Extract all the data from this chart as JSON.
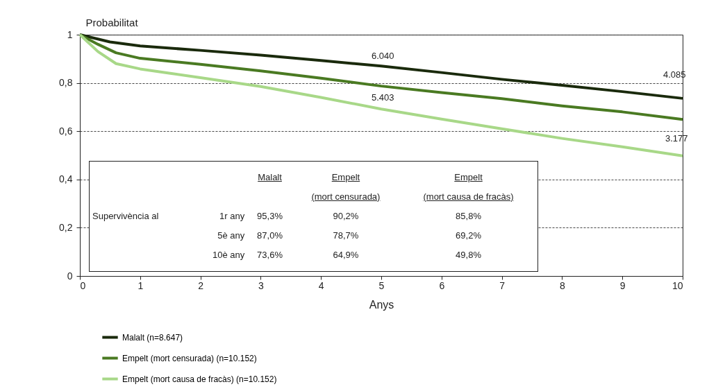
{
  "chart_data": {
    "type": "line",
    "xlabel": "Anys",
    "ylabel": "Probabilitat",
    "xlim": [
      0,
      10
    ],
    "xticks": [
      0,
      1,
      2,
      3,
      4,
      5,
      6,
      7,
      8,
      9,
      10
    ],
    "ylim": [
      0,
      1
    ],
    "yticks": [
      0,
      {
        "value": 0.2,
        "label": "0,2"
      },
      {
        "value": 0.4,
        "label": "0,4"
      },
      {
        "value": 0.6,
        "label": "0,6"
      },
      {
        "value": 0.8,
        "label": "0,8"
      },
      1
    ],
    "grid": "y",
    "legend": "bottom",
    "line_style": "solid",
    "marker": "none",
    "series": [
      {
        "name": "Malalt (n=8.647)",
        "color": "#1a2a0c",
        "x": [
          0,
          0.5,
          1,
          2,
          3,
          4,
          5,
          6,
          7,
          8,
          9,
          10
        ],
        "values": [
          1,
          0.97,
          0.953,
          0.935,
          0.915,
          0.893,
          0.87,
          0.843,
          0.815,
          0.79,
          0.764,
          0.736
        ]
      },
      {
        "name": "Empelt (mort censurada) (n=10.152)",
        "color": "#4a7a22",
        "x": [
          0,
          0.3,
          0.6,
          1,
          2,
          3,
          4,
          5,
          6,
          7,
          8,
          9,
          10
        ],
        "values": [
          1,
          0.96,
          0.925,
          0.902,
          0.877,
          0.85,
          0.82,
          0.787,
          0.76,
          0.735,
          0.705,
          0.68,
          0.649
        ]
      },
      {
        "name": "Empelt (mort causa de fracàs) (n=10.152)",
        "color": "#a8d888",
        "x": [
          0,
          0.3,
          0.6,
          1,
          1.5,
          2,
          3,
          4,
          5,
          6,
          7,
          8,
          9,
          10
        ],
        "values": [
          1,
          0.93,
          0.88,
          0.858,
          0.84,
          0.822,
          0.785,
          0.74,
          0.692,
          0.65,
          0.61,
          0.57,
          0.535,
          0.498
        ]
      }
    ],
    "annotations": [
      "6.040",
      "4.085",
      "5.403",
      "3.177",
      "Malalt",
      "Empelt",
      "Empelt",
      "(mort censurada)",
      "(mort causa de fracàs)",
      "Supervivència al",
      "1r any",
      "95,3%",
      "90,2%",
      "85,8%",
      "5è any",
      "87,0%",
      "78,7%",
      "69,2%",
      "10è any",
      "73,6%",
      "64,9%",
      "49,8%"
    ]
  }
}
